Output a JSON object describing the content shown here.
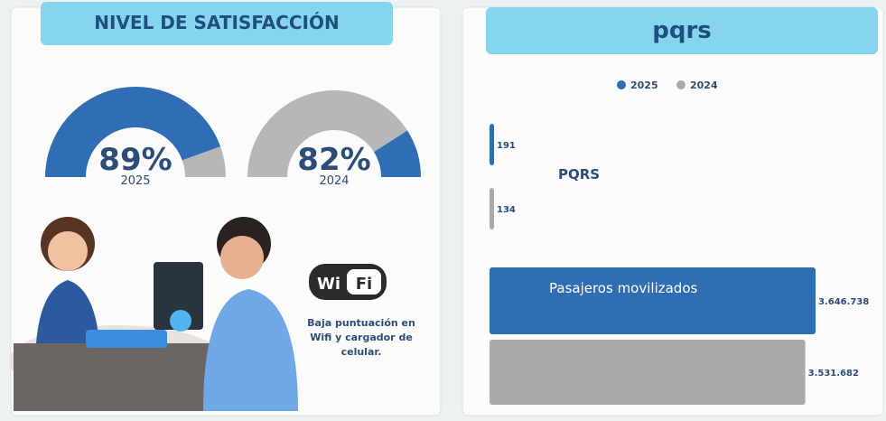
{
  "left_panel": {
    "title": "NIVEL DE SATISFACCIÓN",
    "gauges": [
      {
        "value": 89,
        "label": "89%",
        "year": "2025",
        "color": "#2f6db5",
        "rest_color": "#b7b7b7"
      },
      {
        "value": 82,
        "label": "82%",
        "year": "2024",
        "color": "#b7b7b7",
        "rest_color": "#2f6db5"
      }
    ],
    "wifi_logo": {
      "left": "Wi",
      "right": "Fi"
    },
    "note": "Baja puntuación en Wifi y cargador de celular."
  },
  "right_panel": {
    "title": "pqrs",
    "legend": [
      {
        "name": "2025",
        "color": "#2f6db5"
      },
      {
        "name": "2024",
        "color": "#a9a9a9"
      }
    ],
    "groups": [
      {
        "label": "PQRS",
        "bars": [
          {
            "value": 191,
            "label": "191"
          },
          {
            "value": 134,
            "label": "134"
          }
        ]
      },
      {
        "label": "Pasajeros movilizados",
        "bars": [
          {
            "value": 3646738,
            "label": "3.646.738"
          },
          {
            "value": 3531682,
            "label": "3.531.682"
          }
        ]
      }
    ]
  }
}
